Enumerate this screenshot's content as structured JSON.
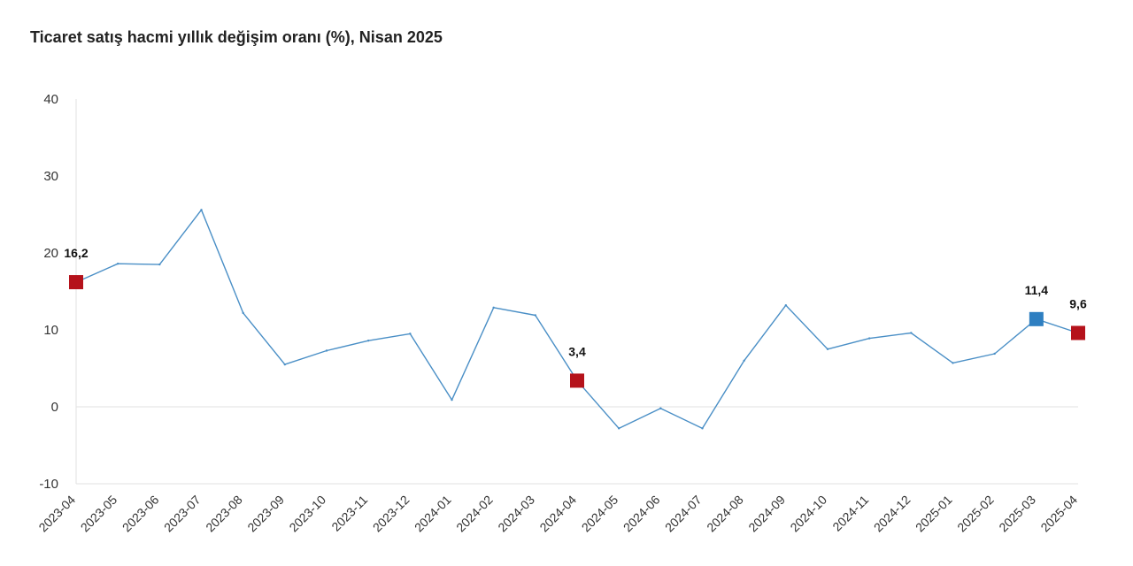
{
  "chart_data": {
    "type": "line",
    "title": "Ticaret satış hacmi yıllık değişim oranı (%), Nisan 2025",
    "xlabel": "",
    "ylabel": "",
    "ylim": [
      -10,
      40
    ],
    "yticks": [
      -10,
      0,
      10,
      20,
      30,
      40
    ],
    "grid": "zero-line",
    "legend": "none",
    "categories": [
      "2023-04",
      "2023-05",
      "2023-06",
      "2023-07",
      "2023-08",
      "2023-09",
      "2023-10",
      "2023-11",
      "2023-12",
      "2024-01",
      "2024-02",
      "2024-03",
      "2024-04",
      "2024-05",
      "2024-06",
      "2024-07",
      "2024-08",
      "2024-09",
      "2024-10",
      "2024-11",
      "2024-12",
      "2025-01",
      "2025-02",
      "2025-03",
      "2025-04"
    ],
    "series": [
      {
        "values": [
          16.2,
          18.6,
          18.5,
          25.6,
          12.2,
          5.5,
          7.3,
          8.6,
          9.5,
          0.9,
          12.9,
          11.9,
          3.4,
          -2.8,
          -0.2,
          -2.8,
          6.0,
          13.2,
          7.5,
          8.9,
          9.6,
          5.7,
          6.9,
          11.4,
          9.6
        ],
        "color": "#4a8fc6"
      }
    ],
    "highlights": [
      {
        "category": "2023-04",
        "label": "16,2",
        "color": "#b5121b"
      },
      {
        "category": "2024-04",
        "label": "3,4",
        "color": "#b5121b"
      },
      {
        "category": "2025-03",
        "label": "11,4",
        "color": "#2e7fc1"
      },
      {
        "category": "2025-04",
        "label": "9,6",
        "color": "#b5121b"
      }
    ]
  }
}
